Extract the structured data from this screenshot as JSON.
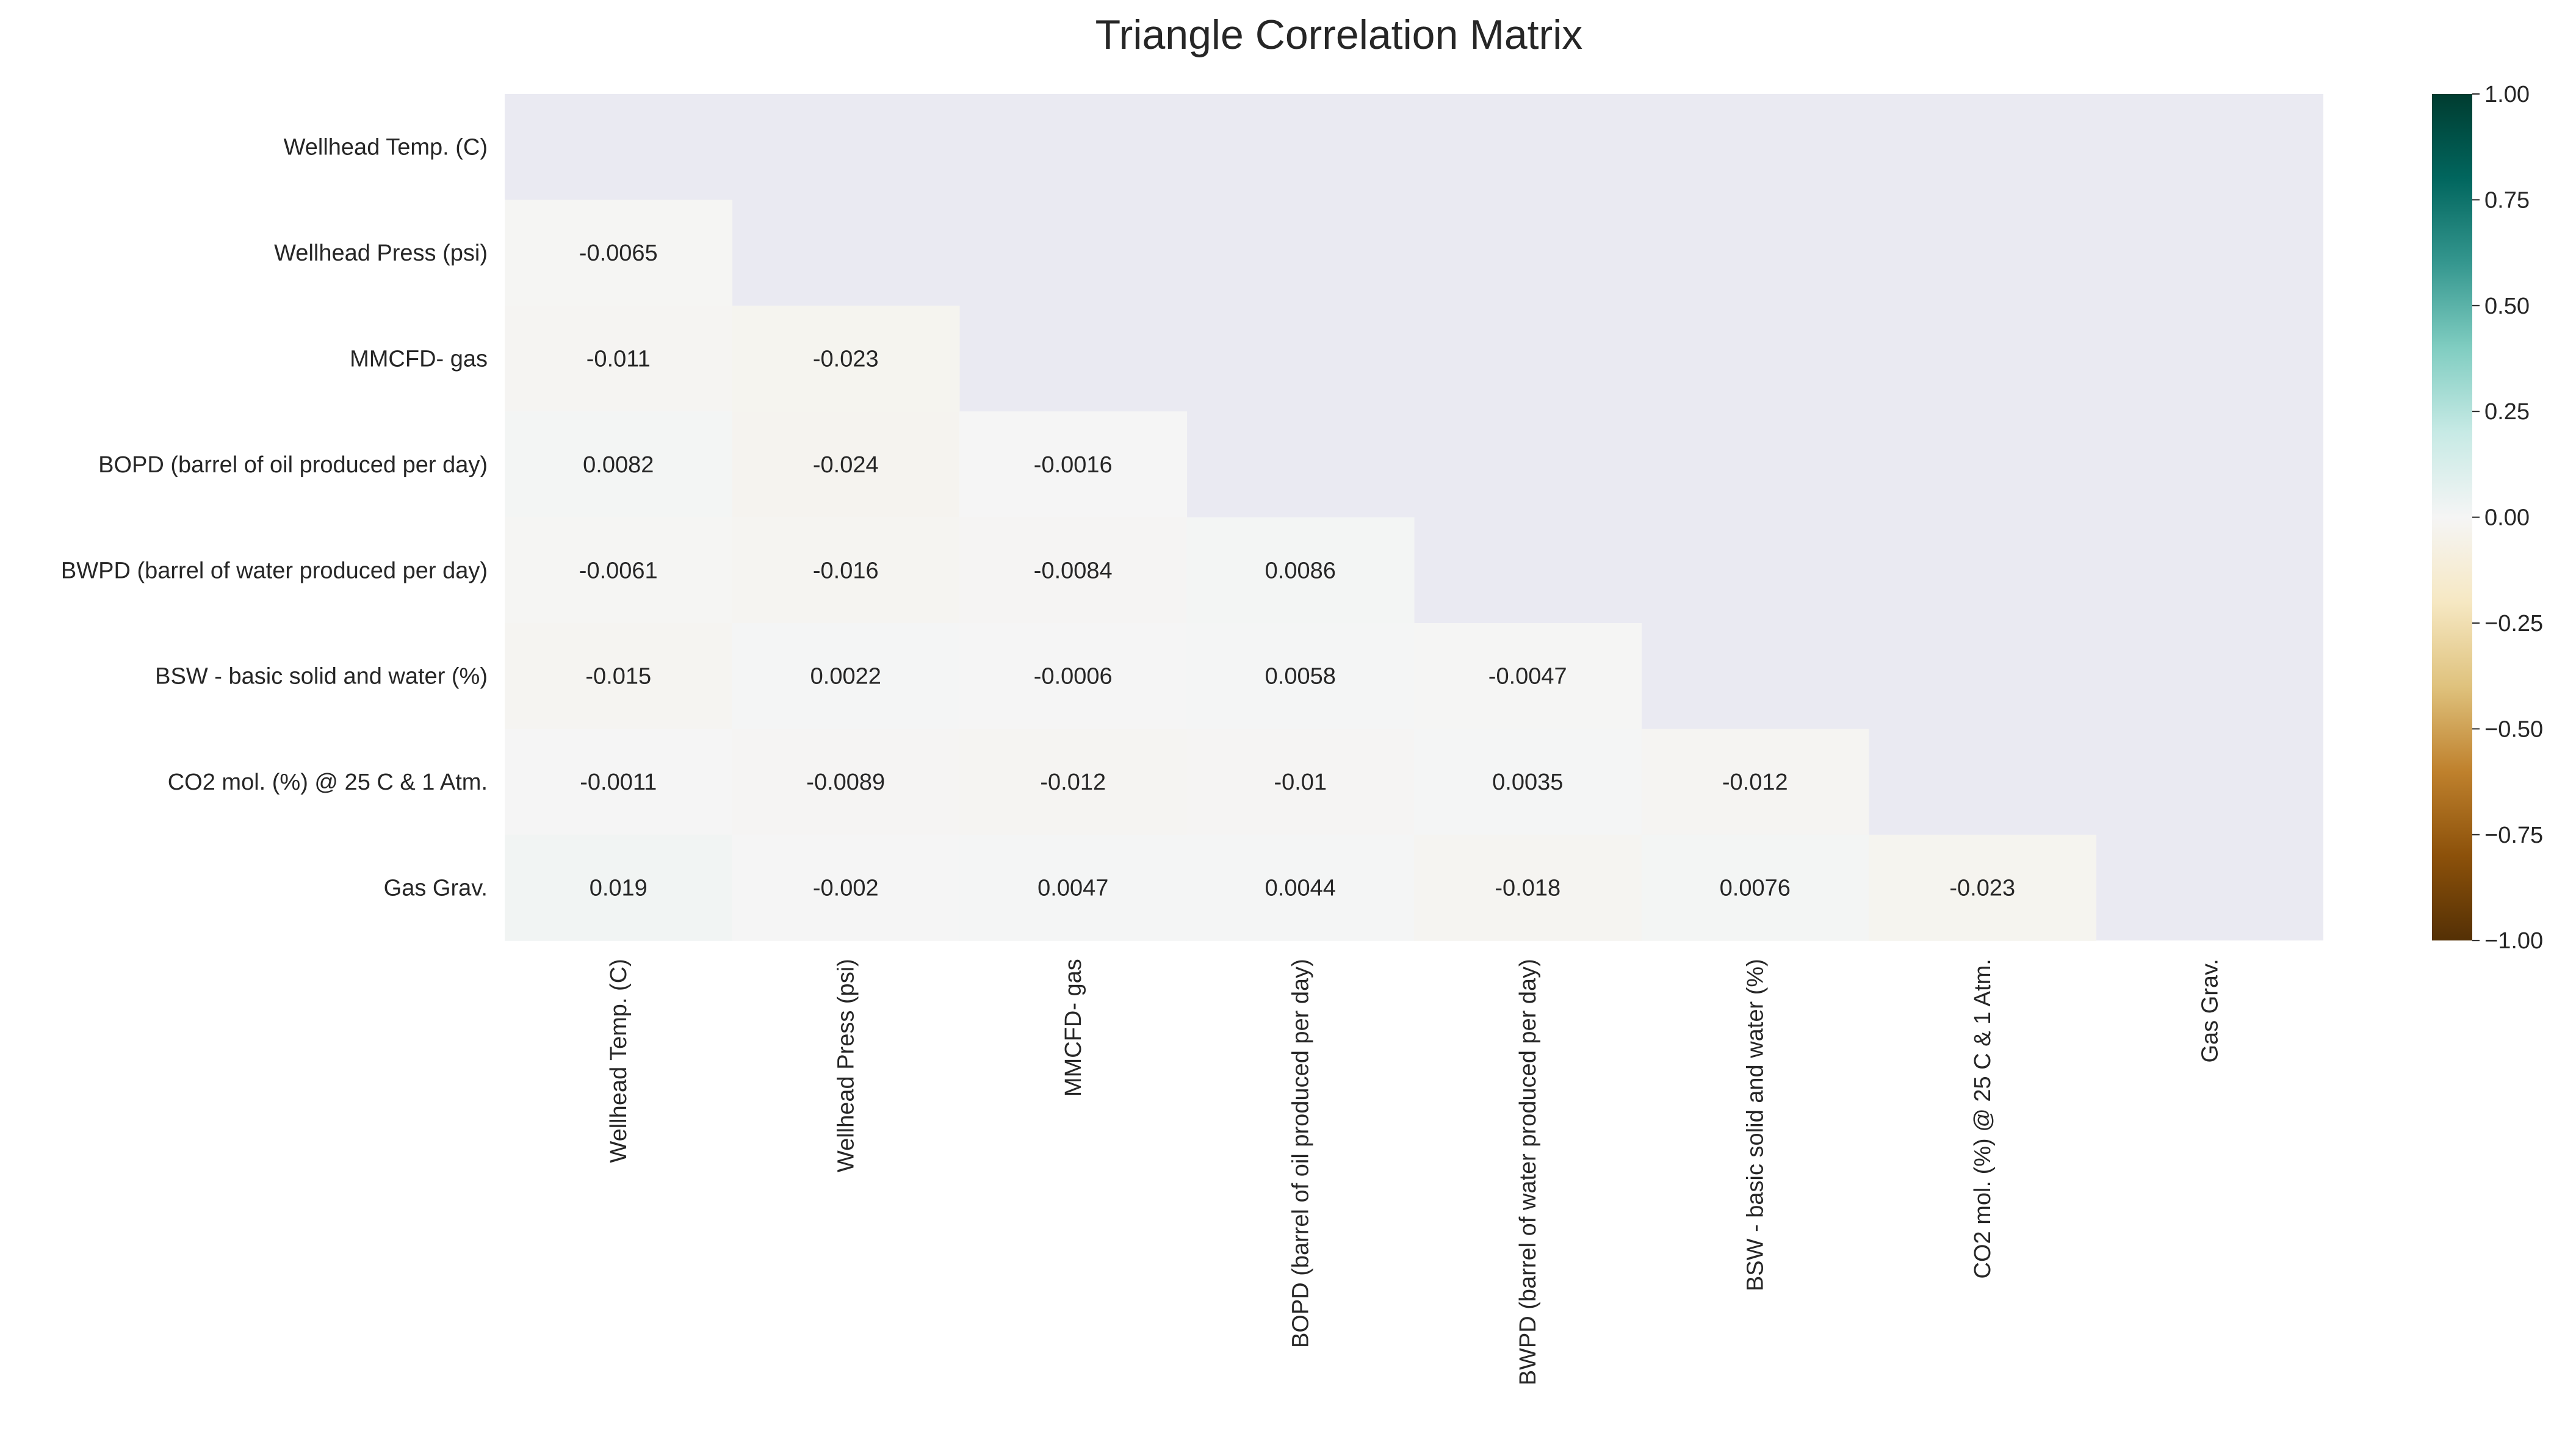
{
  "chart_data": {
    "type": "heatmap",
    "title": "Triangle Correlation Matrix",
    "mask": "upper-triangle-including-diagonal",
    "labels": [
      "Wellhead Temp. (C)",
      "Wellhead Press (psi)",
      "MMCFD- gas",
      "BOPD (barrel of oil produced per day)",
      "BWPD (barrel of water produced per day)",
      "BSW - basic solid and water (%)",
      "CO2 mol. (%) @ 25 C & 1 Atm.",
      "Gas Grav."
    ],
    "cells": [
      {
        "row": 1,
        "col": 0,
        "value": -0.0065,
        "text": "-0.0065"
      },
      {
        "row": 2,
        "col": 0,
        "value": -0.011,
        "text": "-0.011"
      },
      {
        "row": 2,
        "col": 1,
        "value": -0.023,
        "text": "-0.023"
      },
      {
        "row": 3,
        "col": 0,
        "value": 0.0082,
        "text": "0.0082"
      },
      {
        "row": 3,
        "col": 1,
        "value": -0.024,
        "text": "-0.024"
      },
      {
        "row": 3,
        "col": 2,
        "value": -0.0016,
        "text": "-0.0016"
      },
      {
        "row": 4,
        "col": 0,
        "value": -0.0061,
        "text": "-0.0061"
      },
      {
        "row": 4,
        "col": 1,
        "value": -0.016,
        "text": "-0.016"
      },
      {
        "row": 4,
        "col": 2,
        "value": -0.0084,
        "text": "-0.0084"
      },
      {
        "row": 4,
        "col": 3,
        "value": 0.0086,
        "text": "0.0086"
      },
      {
        "row": 5,
        "col": 0,
        "value": -0.015,
        "text": "-0.015"
      },
      {
        "row": 5,
        "col": 1,
        "value": 0.0022,
        "text": "0.0022"
      },
      {
        "row": 5,
        "col": 2,
        "value": -0.0006,
        "text": "-0.0006"
      },
      {
        "row": 5,
        "col": 3,
        "value": 0.0058,
        "text": "0.0058"
      },
      {
        "row": 5,
        "col": 4,
        "value": -0.0047,
        "text": "-0.0047"
      },
      {
        "row": 6,
        "col": 0,
        "value": -0.0011,
        "text": "-0.0011"
      },
      {
        "row": 6,
        "col": 1,
        "value": -0.0089,
        "text": "-0.0089"
      },
      {
        "row": 6,
        "col": 2,
        "value": -0.012,
        "text": "-0.012"
      },
      {
        "row": 6,
        "col": 3,
        "value": -0.01,
        "text": "-0.01"
      },
      {
        "row": 6,
        "col": 4,
        "value": 0.0035,
        "text": "0.0035"
      },
      {
        "row": 6,
        "col": 5,
        "value": -0.012,
        "text": "-0.012"
      },
      {
        "row": 7,
        "col": 0,
        "value": 0.019,
        "text": "0.019"
      },
      {
        "row": 7,
        "col": 1,
        "value": -0.002,
        "text": "-0.002"
      },
      {
        "row": 7,
        "col": 2,
        "value": 0.0047,
        "text": "0.0047"
      },
      {
        "row": 7,
        "col": 3,
        "value": 0.0044,
        "text": "0.0044"
      },
      {
        "row": 7,
        "col": 4,
        "value": -0.018,
        "text": "-0.018"
      },
      {
        "row": 7,
        "col": 5,
        "value": 0.0076,
        "text": "0.0076"
      },
      {
        "row": 7,
        "col": 6,
        "value": -0.023,
        "text": "-0.023"
      }
    ],
    "colorbar": {
      "vmin": -1,
      "vmax": 1,
      "ticks": [
        1.0,
        0.75,
        0.5,
        0.25,
        0.0,
        -0.25,
        -0.5,
        -0.75,
        -1.0
      ],
      "tick_labels": [
        "1.00",
        "0.75",
        "0.50",
        "0.25",
        "0.00",
        "−0.25",
        "−0.50",
        "−0.75",
        "−1.00"
      ]
    },
    "colormap": "BrBG",
    "colors": {
      "masked_background": "#eaeaf2",
      "cmap_stops": [
        "#543005",
        "#8c510a",
        "#bf812d",
        "#dfc27d",
        "#f6e8c3",
        "#f5f5f5",
        "#c7eae5",
        "#80cdc1",
        "#35978f",
        "#01665e",
        "#003c30"
      ]
    }
  }
}
